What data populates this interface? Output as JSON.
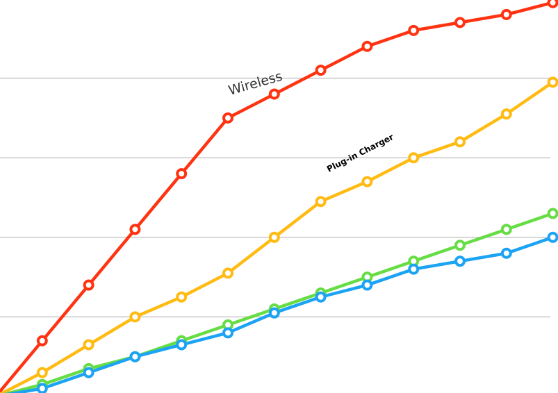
{
  "chart_data": {
    "type": "line",
    "x": [
      0,
      1,
      2,
      3,
      4,
      5,
      6,
      7,
      8,
      9,
      10,
      11,
      12
    ],
    "ylim": [
      0,
      5
    ],
    "grid": true,
    "legend": "none",
    "series": [
      {
        "color": "#ff3311",
        "values": [
          0,
          0.7,
          1.4,
          2.1,
          2.8,
          3.5,
          3.8,
          4.1,
          4.4,
          4.6,
          4.7,
          4.8,
          4.95
        ]
      },
      {
        "color": "#ffbb11",
        "values": [
          0,
          0.3,
          0.65,
          1.0,
          1.25,
          1.55,
          2.0,
          2.45,
          2.7,
          3.0,
          3.2,
          3.55,
          3.95
        ]
      },
      {
        "color": "#66dd44",
        "values": [
          0,
          0.15,
          0.35,
          0.5,
          0.7,
          0.9,
          1.1,
          1.3,
          1.5,
          1.7,
          1.9,
          2.1,
          2.3
        ]
      },
      {
        "color": "#1ca3f4",
        "values": [
          0,
          0.1,
          0.3,
          0.5,
          0.65,
          0.8,
          1.05,
          1.25,
          1.4,
          1.6,
          1.7,
          1.8,
          2.0
        ]
      }
    ],
    "annotations": [
      {
        "text": "Wireless"
      },
      {
        "text": "Plug-in Charger"
      }
    ]
  }
}
